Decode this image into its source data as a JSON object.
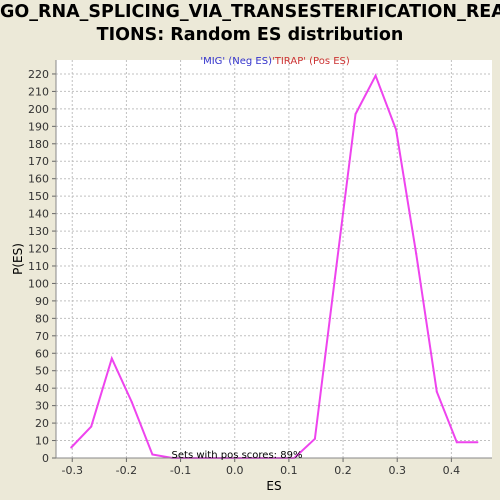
{
  "title_lines": [
    "GO_RNA_SPLICING_VIA_TRANSESTERIFICATION_REAC",
    "TIONS: Random ES distribution"
  ],
  "legend": {
    "neg_label": "'MIG' (Neg ES)",
    "pos_label": "'TIRAP' (Pos ES)",
    "neg_color": "#3333cc",
    "pos_color": "#cc3333"
  },
  "annotation": "Sets with pos scores: 89%",
  "colors": {
    "background": "#ece9d8",
    "plot_background": "#ffffff",
    "grid": "#c0c0c0",
    "line": "#ee44ee"
  },
  "chart_data": {
    "type": "line",
    "title": "GO_RNA_SPLICING_VIA_TRANSESTERIFICATION_REACTIONS: Random ES distribution",
    "xlabel": "ES",
    "ylabel": "P(ES)",
    "xlim": [
      -0.33,
      0.475
    ],
    "ylim": [
      0,
      228
    ],
    "xticks": [
      -0.3,
      -0.2,
      -0.1,
      0.0,
      0.1,
      0.2,
      0.3,
      0.4
    ],
    "xtick_labels": [
      "-0.3",
      "-0.2",
      "-0.1",
      "0.0",
      "0.1",
      "0.2",
      "0.3",
      "0.4"
    ],
    "yticks": [
      0,
      10,
      20,
      30,
      40,
      50,
      60,
      70,
      80,
      90,
      100,
      110,
      120,
      130,
      140,
      150,
      160,
      170,
      180,
      190,
      200,
      210,
      220
    ],
    "grid": true,
    "series": [
      {
        "x": [
          -0.302,
          -0.265,
          -0.227,
          -0.19,
          -0.152,
          -0.115,
          -0.077,
          -0.04,
          -0.002,
          0.035,
          0.073,
          0.11,
          0.148,
          0.185,
          0.223,
          0.26,
          0.298,
          0.335,
          0.373,
          0.41,
          0.448
        ],
        "y": [
          6,
          18,
          57,
          32,
          2,
          0,
          0,
          0,
          0,
          0,
          0,
          0,
          11,
          103,
          197,
          219,
          188,
          117,
          38,
          9,
          9
        ]
      }
    ]
  }
}
